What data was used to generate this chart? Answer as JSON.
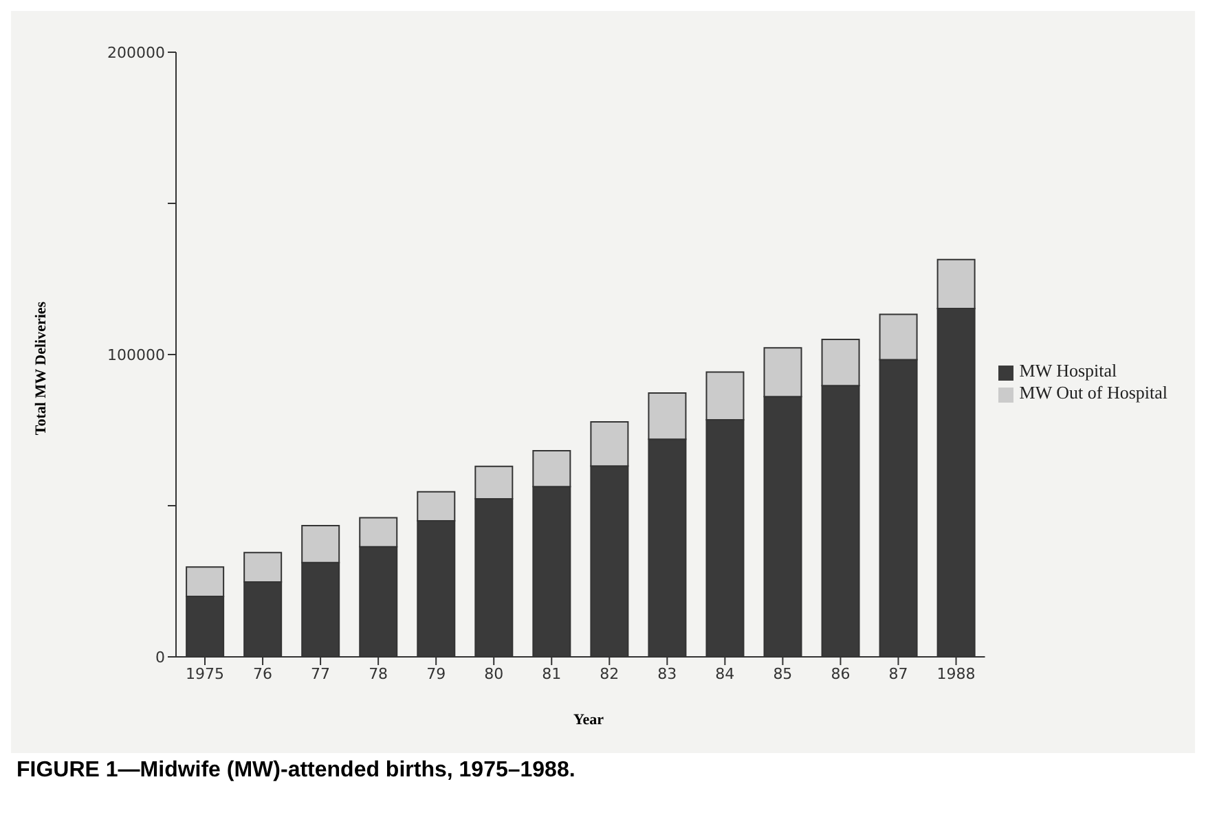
{
  "chart_data": {
    "type": "bar",
    "title": "FIGURE 1—Midwife (MW)-attended births, 1975–1988.",
    "xlabel": "Year",
    "ylabel": "Total MW Deliveries",
    "categories": [
      "1975",
      "76",
      "77",
      "78",
      "79",
      "80",
      "81",
      "82",
      "83",
      "84",
      "85",
      "86",
      "87",
      "1988"
    ],
    "stacked": true,
    "series": [
      {
        "name": "MW Hospital",
        "color": "#3a3a3a",
        "values": [
          20000,
          24800,
          31200,
          36400,
          45000,
          52300,
          56300,
          63100,
          72000,
          78400,
          86100,
          89700,
          98300,
          115200
        ]
      },
      {
        "name": "MW Out of Hospital",
        "color": "#cbcbcb",
        "values": [
          9700,
          9700,
          12200,
          9600,
          9600,
          10700,
          11900,
          14600,
          15300,
          15800,
          16100,
          15300,
          15000,
          16200
        ]
      }
    ],
    "ylim": [
      0,
      200000
    ],
    "yticks": [
      0,
      {
        "value": 50000,
        "label": null
      },
      100000,
      {
        "value": 150000,
        "label": null
      },
      200000
    ],
    "legend": "right"
  }
}
